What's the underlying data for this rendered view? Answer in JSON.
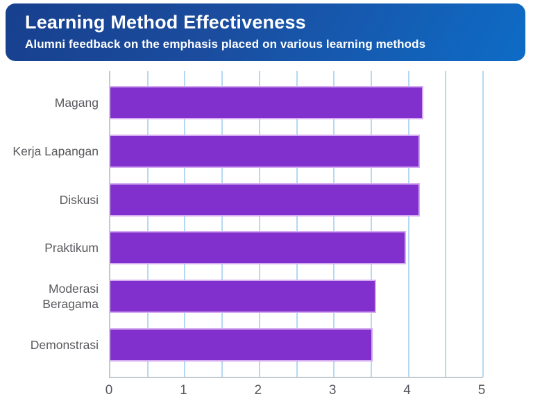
{
  "header": {
    "title": "Learning Method Effectiveness",
    "subtitle": "Alumni feedback on the emphasis placed on various learning methods",
    "gradient_start": "#17408e",
    "gradient_mid": "#1b4c9e",
    "gradient_end": "#0e6cc6",
    "text_color": "#ffffff"
  },
  "chart_data": {
    "type": "bar",
    "orientation": "horizontal",
    "title": "Learning Method Effectiveness",
    "subtitle": "Alumni feedback on the emphasis placed on various learning methods",
    "categories": [
      "Magang",
      "Kerja Lapangan",
      "Diskusi",
      "Praktikum",
      "Moderasi Beragama",
      "Demonstrasi"
    ],
    "values": [
      4.2,
      4.15,
      4.15,
      3.97,
      3.57,
      3.52
    ],
    "xlabel": "",
    "ylabel": "",
    "xlim": [
      0,
      5
    ],
    "x_ticks": [
      0,
      1,
      2,
      3,
      4,
      5
    ],
    "gridline_step": 0.5,
    "grid": true,
    "legend": false,
    "bar_color": "#8230cd",
    "bar_border_color": "#d5aaf0",
    "gridline_color": "#b5d9f2",
    "axis_color": "#c4c9ce",
    "label_color": "#595a5e"
  }
}
